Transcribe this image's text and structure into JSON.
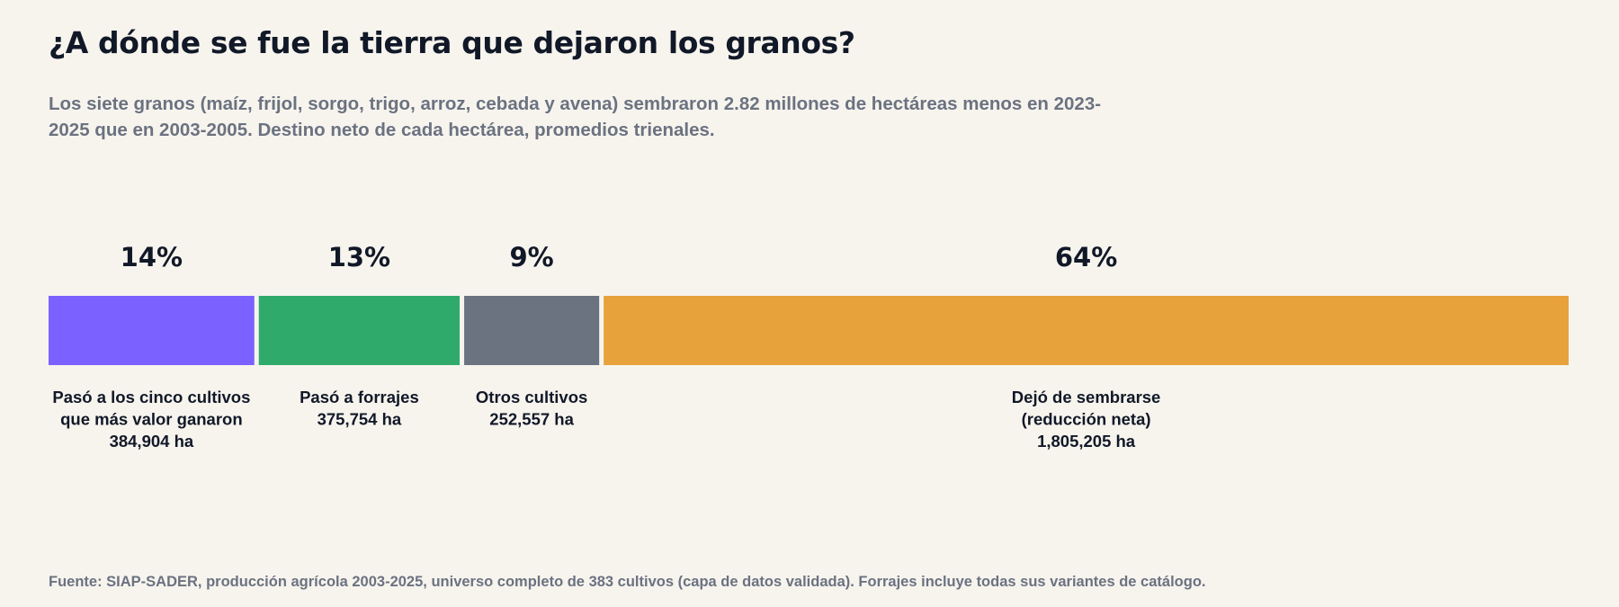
{
  "title": "¿A dónde se fue la tierra que dejaron los granos?",
  "subtitle": "Los siete granos (maíz, frijol, sorgo, trigo, arroz, cebada y avena) sembraron 2.82 millones de hectáreas menos en 2023-2025 que en 2003-2005. Destino neto de cada hectárea, promedios trienales.",
  "source": "Fuente: SIAP-SADER, producción agrícola 2003-2025, universo completo de 383 cultivos (capa de datos validada). Forrajes incluye todas sus variantes de catálogo.",
  "chart_data": {
    "type": "bar",
    "orientation": "horizontal-stacked",
    "unit": "ha",
    "total": 2818420,
    "segments": [
      {
        "label_lines": [
          "Pasó a los cinco cultivos",
          "que más valor ganaron"
        ],
        "value": 384904,
        "value_label": "384,904 ha",
        "percent_label": "14%",
        "color": "#7b61ff"
      },
      {
        "label_lines": [
          "Pasó a forrajes"
        ],
        "value": 375754,
        "value_label": "375,754 ha",
        "percent_label": "13%",
        "color": "#2faa6b"
      },
      {
        "label_lines": [
          "Otros cultivos"
        ],
        "value": 252557,
        "value_label": "252,557 ha",
        "percent_label": "9%",
        "color": "#6b7280"
      },
      {
        "label_lines": [
          "Dejó de sembrarse",
          "(reducción neta)"
        ],
        "value": 1805205,
        "value_label": "1,805,205 ha",
        "percent_label": "64%",
        "color": "#e8a23b"
      }
    ],
    "legend": "none",
    "grid": false
  }
}
